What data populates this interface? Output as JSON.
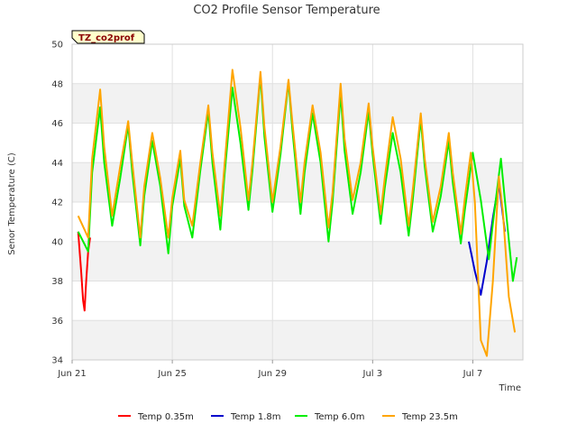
{
  "chart_data": {
    "type": "line",
    "title": "CO2 Profile Sensor Temperature",
    "xlabel": "Time",
    "ylabel": "Senor Temperature (C)",
    "station_label": "TZ_co2prof",
    "ylim": [
      34,
      50
    ],
    "xlim_days": [
      0,
      22.5
    ],
    "x_ticks": [
      {
        "day": 0,
        "label": "Jun 21"
      },
      {
        "day": 5,
        "label": "Jun 25"
      },
      {
        "day": 10,
        "label": "Jun 29"
      },
      {
        "day": 15,
        "label": "Jul 3"
      },
      {
        "day": 20,
        "label": "Jul 7"
      }
    ],
    "y_ticks": [
      34,
      36,
      38,
      40,
      42,
      44,
      46,
      48,
      50
    ],
    "legend_position": "bottom-center",
    "series": [
      {
        "name": "Temp 0.35m",
        "color": "#ff0000",
        "x": [
          0.3,
          0.45,
          0.55,
          0.62,
          0.7,
          0.8,
          0.9
        ],
        "y": [
          40.5,
          38.5,
          37.0,
          36.5,
          38.0,
          39.5,
          40.2
        ]
      },
      {
        "name": "Temp 1.8m",
        "color": "#0000cc",
        "x": [
          19.8,
          20.1,
          20.4,
          20.7,
          21.0,
          21.3,
          21.6
        ],
        "y": [
          40.0,
          38.5,
          37.3,
          39.0,
          41.2,
          43.0,
          40.5
        ]
      },
      {
        "name": "Temp 6.0m",
        "color": "#00ee00",
        "x": [
          0.3,
          0.8,
          1.0,
          1.4,
          1.6,
          2.0,
          2.4,
          2.8,
          3.0,
          3.4,
          3.6,
          4.0,
          4.4,
          4.8,
          5.0,
          5.4,
          5.6,
          6.0,
          6.4,
          6.8,
          7.0,
          7.4,
          7.6,
          8.0,
          8.4,
          8.8,
          9.0,
          9.4,
          9.6,
          10.0,
          10.4,
          10.8,
          11.0,
          11.4,
          11.6,
          12.0,
          12.4,
          12.8,
          13.0,
          13.4,
          13.6,
          14.0,
          14.4,
          14.8,
          15.0,
          15.4,
          15.6,
          16.0,
          16.4,
          16.8,
          17.0,
          17.4,
          17.6,
          18.0,
          18.4,
          18.8,
          19.0,
          19.4,
          19.6,
          20.0,
          20.4,
          20.8,
          21.0,
          21.4,
          21.6,
          22.0,
          22.2
        ],
        "y": [
          40.5,
          39.5,
          43.5,
          46.8,
          44.0,
          40.8,
          43.2,
          45.9,
          43.5,
          39.8,
          42.3,
          45.1,
          42.8,
          39.4,
          41.8,
          44.2,
          41.8,
          40.2,
          43.6,
          46.6,
          44.0,
          40.6,
          43.3,
          47.8,
          45.0,
          41.6,
          43.6,
          48.4,
          45.3,
          41.5,
          44.4,
          48.1,
          45.6,
          41.4,
          43.5,
          46.5,
          44.0,
          40.0,
          42.0,
          47.5,
          44.6,
          41.4,
          43.5,
          46.6,
          44.4,
          40.9,
          42.7,
          45.5,
          43.5,
          40.3,
          42.1,
          46.2,
          43.8,
          40.5,
          42.3,
          45.1,
          43.0,
          39.9,
          41.6,
          44.5,
          42.1,
          39.1,
          40.9,
          44.2,
          42.1,
          38.0,
          39.2
        ]
      },
      {
        "name": "Temp 23.5m",
        "color": "#ffa500",
        "x": [
          0.3,
          0.8,
          1.0,
          1.4,
          1.6,
          2.0,
          2.4,
          2.8,
          3.0,
          3.4,
          3.6,
          4.0,
          4.4,
          4.8,
          5.0,
          5.4,
          5.6,
          6.0,
          6.4,
          6.8,
          7.0,
          7.4,
          7.6,
          8.0,
          8.4,
          8.8,
          9.0,
          9.4,
          9.6,
          10.0,
          10.4,
          10.8,
          11.0,
          11.4,
          11.6,
          12.0,
          12.4,
          12.8,
          13.0,
          13.4,
          13.6,
          14.0,
          14.4,
          14.8,
          15.0,
          15.4,
          15.6,
          16.0,
          16.4,
          16.8,
          17.0,
          17.4,
          17.6,
          18.0,
          18.4,
          18.8,
          19.0,
          19.4,
          19.6,
          19.9,
          20.1,
          20.4,
          20.7,
          21.0,
          21.3,
          21.5,
          21.8,
          22.1
        ],
        "y": [
          41.3,
          40.2,
          44.2,
          47.7,
          44.8,
          41.3,
          43.8,
          46.1,
          44.0,
          40.2,
          42.8,
          45.5,
          43.2,
          40.2,
          42.2,
          44.6,
          42.1,
          40.8,
          44.0,
          46.9,
          44.5,
          41.3,
          43.8,
          48.7,
          45.8,
          42.1,
          44.0,
          48.6,
          45.8,
          42.0,
          44.8,
          48.2,
          46.0,
          42.0,
          44.0,
          46.9,
          44.5,
          40.7,
          42.5,
          48.0,
          45.2,
          42.1,
          44.0,
          47.0,
          44.8,
          41.4,
          43.2,
          46.3,
          44.2,
          40.8,
          42.6,
          46.5,
          44.2,
          41.0,
          42.8,
          45.5,
          43.5,
          40.4,
          42.2,
          44.5,
          42.0,
          35.0,
          34.2,
          38.0,
          43.3,
          41.5,
          37.2,
          35.4
        ]
      }
    ]
  }
}
